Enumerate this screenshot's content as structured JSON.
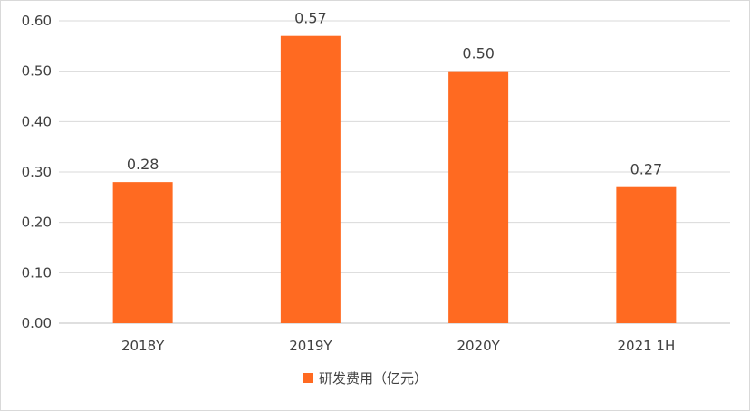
{
  "chart_data": {
    "type": "bar",
    "categories": [
      "2018Y",
      "2019Y",
      "2020Y",
      "2021 1H"
    ],
    "series": [
      {
        "name": "研发费用（亿元）",
        "values": [
          0.28,
          0.57,
          0.5,
          0.27
        ],
        "labels": [
          "0.28",
          "0.57",
          "0.50",
          "0.27"
        ],
        "color": "#FF6A21"
      }
    ],
    "y_ticks": [
      "0.00",
      "0.10",
      "0.20",
      "0.30",
      "0.40",
      "0.50",
      "0.60"
    ],
    "ylim": [
      0,
      0.6
    ],
    "grid": true,
    "legend_position": "bottom",
    "title": "",
    "xlabel": "",
    "ylabel": ""
  }
}
